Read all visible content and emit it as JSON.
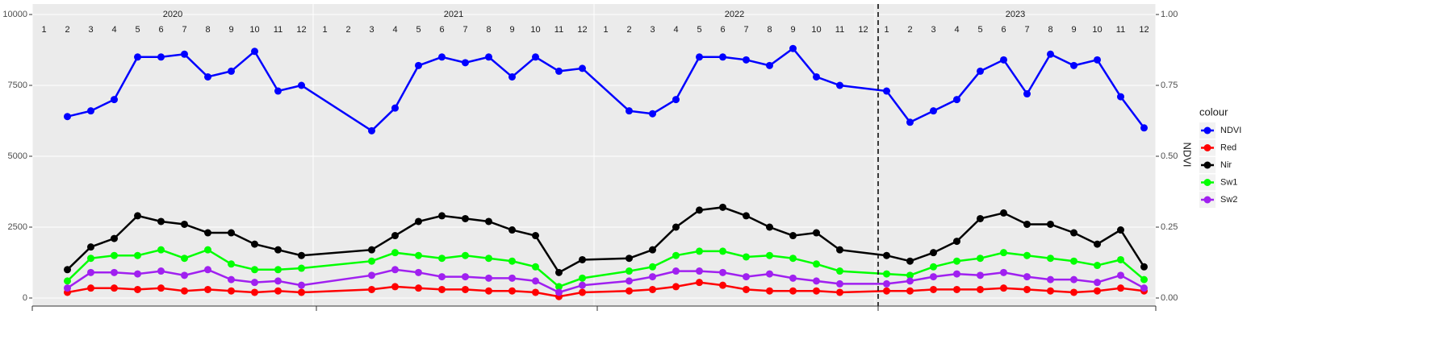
{
  "chart_data": {
    "type": "line",
    "years": [
      "2020",
      "2021",
      "2022",
      "2023"
    ],
    "months": [
      "1",
      "2",
      "3",
      "4",
      "5",
      "6",
      "7",
      "8",
      "9",
      "10",
      "11",
      "12"
    ],
    "x": [
      "2020-02",
      "2020-03",
      "2020-04",
      "2020-05",
      "2020-06",
      "2020-07",
      "2020-08",
      "2020-09",
      "2020-10",
      "2020-11",
      "2020-12",
      "2021-03",
      "2021-04",
      "2021-05",
      "2021-06",
      "2021-07",
      "2021-08",
      "2021-09",
      "2021-10",
      "2021-11",
      "2021-12",
      "2022-02",
      "2022-03",
      "2022-04",
      "2022-05",
      "2022-06",
      "2022-07",
      "2022-08",
      "2022-09",
      "2022-10",
      "2022-11",
      "2023-01",
      "2023-02",
      "2023-03",
      "2023-04",
      "2023-05",
      "2023-06",
      "2023-07",
      "2023-08",
      "2023-09",
      "2023-10",
      "2023-11",
      "2023-12"
    ],
    "series": [
      {
        "name": "NDVI",
        "color": "#0000ff",
        "axis": "y2",
        "values": [
          0.64,
          0.66,
          0.7,
          0.85,
          0.85,
          0.86,
          0.78,
          0.8,
          0.87,
          0.73,
          0.75,
          0.59,
          0.67,
          0.82,
          0.85,
          0.83,
          0.85,
          0.78,
          0.85,
          0.8,
          0.81,
          0.66,
          0.65,
          0.7,
          0.85,
          0.85,
          0.84,
          0.82,
          0.88,
          0.78,
          0.75,
          0.73,
          0.62,
          0.66,
          0.7,
          0.8,
          0.84,
          0.72,
          0.86,
          0.82,
          0.84,
          0.71,
          0.6
        ]
      },
      {
        "name": "Red",
        "color": "#ff0000",
        "values": [
          200,
          350,
          350,
          300,
          350,
          250,
          300,
          250,
          200,
          250,
          200,
          300,
          400,
          350,
          300,
          300,
          250,
          250,
          200,
          50,
          200,
          250,
          300,
          400,
          550,
          450,
          300,
          250,
          250,
          250,
          200,
          250,
          250,
          300,
          300,
          300,
          350,
          300,
          250,
          200,
          250,
          350,
          250
        ]
      },
      {
        "name": "Nir",
        "color": "#000000",
        "values": [
          1000,
          1800,
          2100,
          2900,
          2700,
          2600,
          2300,
          2300,
          1900,
          1700,
          1500,
          1700,
          2200,
          2700,
          2900,
          2800,
          2700,
          2400,
          2200,
          900,
          1350,
          1400,
          1700,
          2500,
          3100,
          3200,
          2900,
          2500,
          2200,
          2300,
          1700,
          1500,
          1300,
          1600,
          2000,
          2800,
          3000,
          2600,
          2600,
          2300,
          1900,
          2400,
          1100
        ]
      },
      {
        "name": "Sw1",
        "color": "#00ff00",
        "values": [
          600,
          1400,
          1500,
          1500,
          1700,
          1400,
          1700,
          1200,
          1000,
          1000,
          1050,
          1300,
          1600,
          1500,
          1400,
          1500,
          1400,
          1300,
          1100,
          400,
          700,
          950,
          1100,
          1500,
          1650,
          1650,
          1450,
          1500,
          1400,
          1200,
          950,
          850,
          800,
          1100,
          1300,
          1400,
          1600,
          1500,
          1400,
          1300,
          1150,
          1350,
          650
        ]
      },
      {
        "name": "Sw2",
        "color": "#a020f0",
        "values": [
          350,
          900,
          900,
          850,
          950,
          800,
          1000,
          650,
          550,
          600,
          450,
          800,
          1000,
          900,
          750,
          750,
          700,
          700,
          600,
          200,
          450,
          600,
          750,
          950,
          950,
          900,
          750,
          850,
          700,
          600,
          500,
          500,
          600,
          750,
          850,
          800,
          900,
          750,
          650,
          650,
          550,
          800,
          350
        ]
      }
    ],
    "ylim": [
      0,
      10000
    ],
    "yticks": [
      0,
      2500,
      5000,
      7500,
      10000
    ],
    "y2lim": [
      0,
      1
    ],
    "y2ticks": [
      {
        "value": 0,
        "label": "0.00"
      },
      {
        "value": 0.25,
        "label": "0.25"
      },
      {
        "value": 0.5,
        "label": "0.50"
      },
      {
        "value": 0.75,
        "label": "0.75"
      },
      {
        "value": 1,
        "label": "1.00"
      }
    ],
    "y2label": "NDVI",
    "legend_title": "colour",
    "legend": "right",
    "grid": true
  }
}
